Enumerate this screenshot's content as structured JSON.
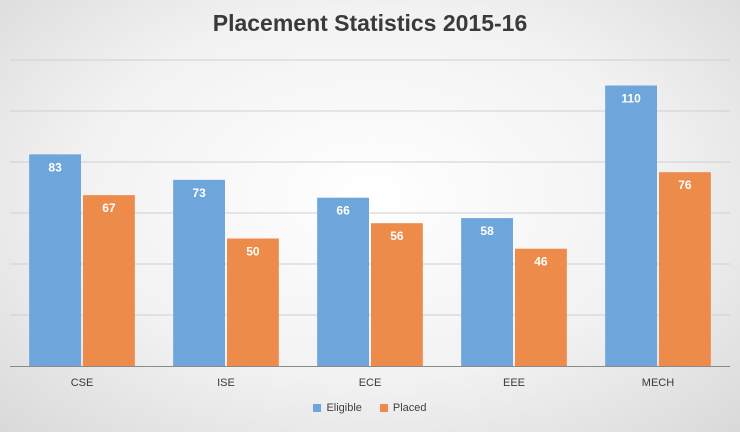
{
  "colors": {
    "eligible": "#6ea6db",
    "placed": "#ed8b4b",
    "grid": "#cfcfcf",
    "axis": "#8a8a8a",
    "label_light": "#ffffff",
    "tick": "#3a3a3a"
  },
  "chart_data": {
    "type": "bar",
    "title": "Placement Statistics 2015-16",
    "categories": [
      "CSE",
      "ISE",
      "ECE",
      "EEE",
      "MECH"
    ],
    "series": [
      {
        "name": "Eligible",
        "values": [
          83,
          73,
          66,
          58,
          110
        ]
      },
      {
        "name": "Placed",
        "values": [
          67,
          50,
          56,
          46,
          76
        ]
      }
    ],
    "ylim": [
      0,
      120
    ],
    "gridlines": true,
    "data_labels": true,
    "legend_position": "bottom"
  }
}
